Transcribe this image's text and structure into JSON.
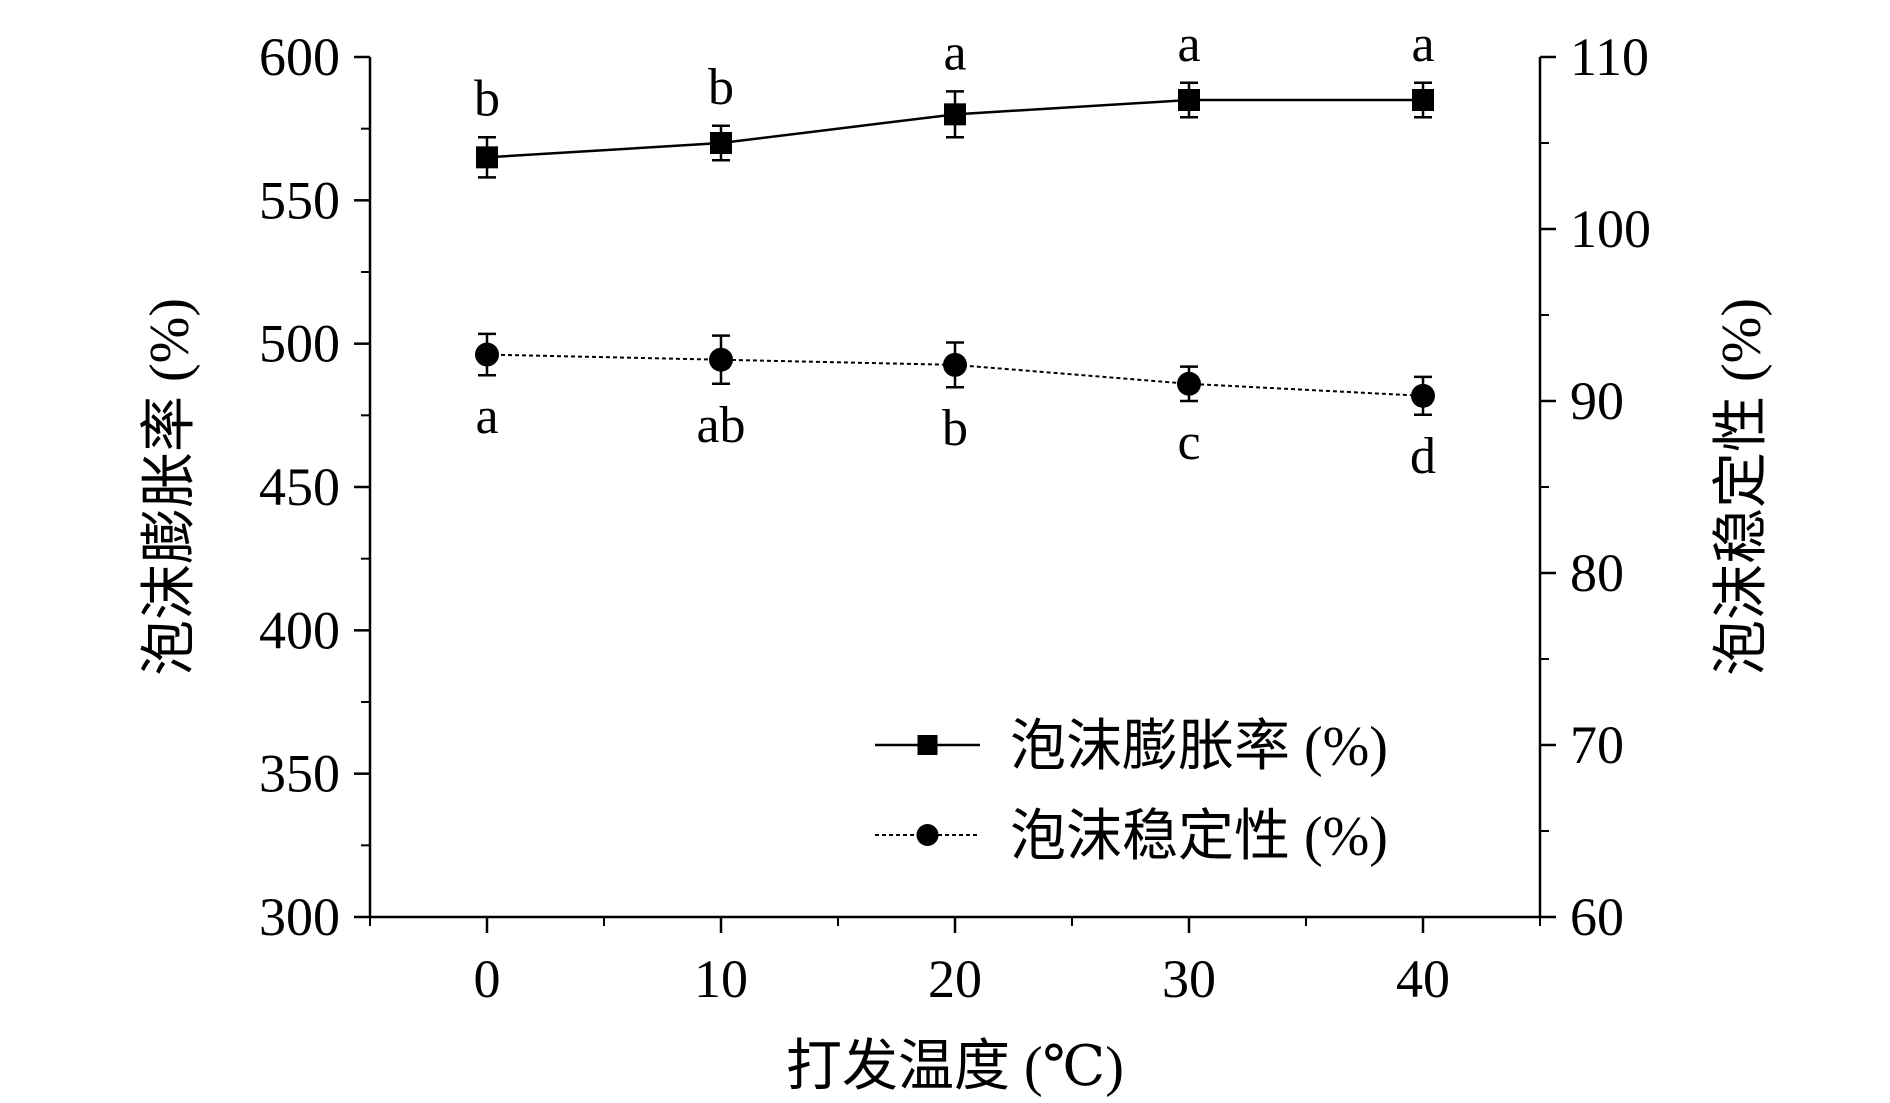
{
  "chart_data": {
    "type": "line",
    "xlabel": "打发温度 (℃)",
    "ylabel_left": "泡沫膨胀率 (%)",
    "ylabel_right": "泡沫稳定性 (%)",
    "x_ticks": [
      "0",
      "10",
      "20",
      "30",
      "40"
    ],
    "xlim": [
      -5,
      45
    ],
    "ylim_left": [
      300,
      600
    ],
    "ylim_right": [
      60,
      110
    ],
    "yticks_left": [
      "300",
      "350",
      "400",
      "450",
      "500",
      "550",
      "600"
    ],
    "yticks_right": [
      "60",
      "70",
      "80",
      "90",
      "100",
      "110"
    ],
    "grid": false,
    "legend_position": "bottom-right",
    "series": [
      {
        "name": "泡沫膨胀率 (%)",
        "axis": "left",
        "marker": "square",
        "line_style": "solid",
        "x": [
          0,
          10,
          20,
          30,
          40
        ],
        "y": [
          565,
          570,
          580,
          585,
          585
        ],
        "error": [
          7,
          6,
          8,
          6,
          6
        ],
        "significance": [
          "b",
          "b",
          "a",
          "a",
          "a"
        ]
      },
      {
        "name": "泡沫稳定性 (%)",
        "axis": "right",
        "marker": "circle",
        "line_style": "dotted",
        "x": [
          0,
          10,
          20,
          30,
          40
        ],
        "y": [
          92.7,
          92.4,
          92.1,
          91.0,
          90.3
        ],
        "error": [
          1.2,
          1.4,
          1.3,
          1.0,
          1.1
        ],
        "significance": [
          "a",
          "ab",
          "b",
          "c",
          "d"
        ]
      }
    ]
  }
}
